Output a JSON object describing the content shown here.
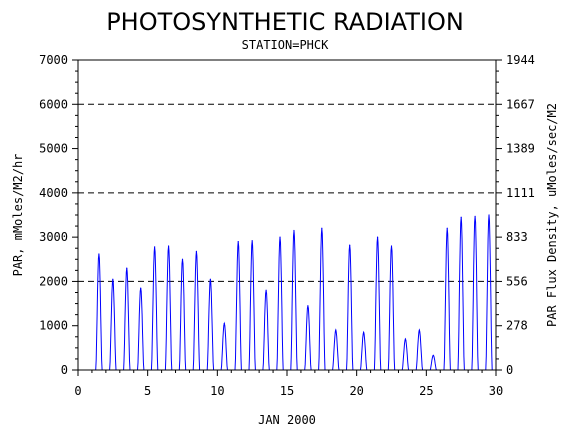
{
  "chart_data": {
    "type": "line",
    "title": "PHOTOSYNTHETIC RADIATION",
    "subtitle": "STATION=PHCK",
    "xlabel": "JAN 2000",
    "ylabel": "PAR, mMoles/M2/hr",
    "y2label": "PAR Flux Density, uMoles/sec/M2",
    "xlim": [
      0,
      30
    ],
    "ylim": [
      0,
      7000
    ],
    "y2lim": [
      0,
      1944
    ],
    "x_ticks": [
      "0",
      "5",
      "10",
      "15",
      "20",
      "25",
      "30"
    ],
    "y_ticks": [
      "0",
      "1000",
      "2000",
      "3000",
      "4000",
      "5000",
      "6000",
      "7000"
    ],
    "y2_ticks": [
      "0",
      "278",
      "556",
      "833",
      "1111",
      "1389",
      "1667",
      "1944"
    ],
    "gridlines_y": [
      2000,
      4000,
      6000
    ],
    "grid": "dashed horizontal at 2000, 4000, 6000",
    "line_color": "#0000ff",
    "series": [
      {
        "daily_peaks": [
          {
            "day": 1.5,
            "value": 2620
          },
          {
            "day": 2.5,
            "value": 2050
          },
          {
            "day": 3.5,
            "value": 2300
          },
          {
            "day": 4.5,
            "value": 1850
          },
          {
            "day": 5.5,
            "value": 2780
          },
          {
            "day": 6.5,
            "value": 2800
          },
          {
            "day": 7.5,
            "value": 2500
          },
          {
            "day": 8.5,
            "value": 2680
          },
          {
            "day": 9.5,
            "value": 2050
          },
          {
            "day": 10.5,
            "value": 1050
          },
          {
            "day": 11.5,
            "value": 2900
          },
          {
            "day": 12.5,
            "value": 2920
          },
          {
            "day": 13.5,
            "value": 1800
          },
          {
            "day": 14.5,
            "value": 3000
          },
          {
            "day": 15.5,
            "value": 3150
          },
          {
            "day": 16.5,
            "value": 1450
          },
          {
            "day": 17.5,
            "value": 3200
          },
          {
            "day": 18.5,
            "value": 900
          },
          {
            "day": 19.5,
            "value": 2820
          },
          {
            "day": 20.5,
            "value": 850
          },
          {
            "day": 21.5,
            "value": 3000
          },
          {
            "day": 22.5,
            "value": 2800
          },
          {
            "day": 23.5,
            "value": 700
          },
          {
            "day": 24.5,
            "value": 900
          },
          {
            "day": 25.5,
            "value": 330
          },
          {
            "day": 26.5,
            "value": 3200
          },
          {
            "day": 27.5,
            "value": 3450
          },
          {
            "day": 28.5,
            "value": 3470
          },
          {
            "day": 29.5,
            "value": 3500
          }
        ]
      }
    ]
  }
}
